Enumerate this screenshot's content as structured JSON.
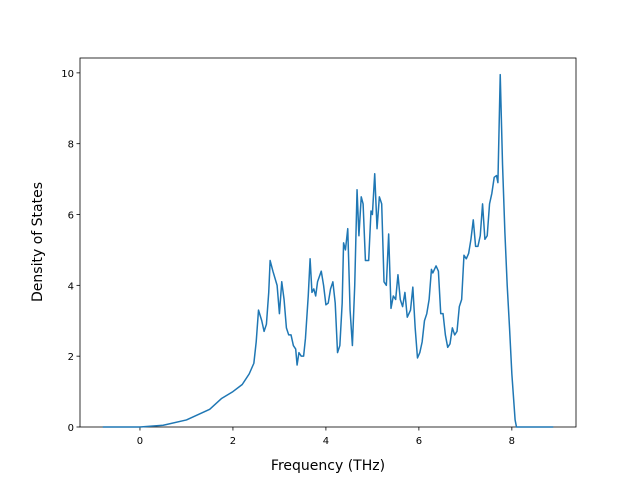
{
  "chart_data": {
    "type": "line",
    "xlabel": "Frequency (THz)",
    "ylabel": "Density of States",
    "xlim": [
      -1.29,
      9.38
    ],
    "ylim": [
      0,
      10.42
    ],
    "xticks": [
      0,
      2,
      4,
      6,
      8
    ],
    "yticks": [
      0,
      2,
      4,
      6,
      8,
      10
    ],
    "series": [
      {
        "color": "#1f77b4",
        "x": [
          -0.8,
          0,
          0.5,
          1.0,
          1.5,
          1.75,
          2.0,
          2.2,
          2.35,
          2.45,
          2.5,
          2.55,
          2.62,
          2.67,
          2.72,
          2.77,
          2.8,
          2.86,
          2.95,
          3.0,
          3.05,
          3.1,
          3.15,
          3.2,
          3.25,
          3.3,
          3.35,
          3.38,
          3.42,
          3.47,
          3.52,
          3.56,
          3.62,
          3.66,
          3.7,
          3.74,
          3.78,
          3.82,
          3.9,
          3.95,
          4.0,
          4.05,
          4.1,
          4.15,
          4.2,
          4.25,
          4.3,
          4.35,
          4.38,
          4.42,
          4.47,
          4.52,
          4.57,
          4.62,
          4.67,
          4.71,
          4.76,
          4.8,
          4.85,
          4.92,
          4.97,
          5.0,
          5.05,
          5.1,
          5.15,
          5.2,
          5.25,
          5.3,
          5.35,
          5.4,
          5.45,
          5.5,
          5.55,
          5.6,
          5.65,
          5.7,
          5.75,
          5.82,
          5.87,
          5.92,
          5.97,
          6.02,
          6.07,
          6.12,
          6.17,
          6.22,
          6.27,
          6.3,
          6.37,
          6.42,
          6.47,
          6.52,
          6.57,
          6.62,
          6.67,
          6.72,
          6.77,
          6.82,
          6.87,
          6.92,
          6.97,
          7.02,
          7.07,
          7.12,
          7.17,
          7.22,
          7.27,
          7.32,
          7.37,
          7.42,
          7.47,
          7.52,
          7.57,
          7.62,
          7.67,
          7.7,
          7.75,
          7.8,
          7.85,
          7.9,
          7.95,
          8.0,
          8.07,
          8.1,
          8.89
        ],
        "values": [
          0,
          0,
          0.05,
          0.2,
          0.5,
          0.8,
          1.0,
          1.2,
          1.5,
          1.8,
          2.4,
          3.3,
          3.0,
          2.7,
          2.9,
          3.8,
          4.7,
          4.4,
          4.0,
          3.2,
          4.1,
          3.6,
          2.8,
          2.6,
          2.6,
          2.3,
          2.2,
          1.75,
          2.1,
          2.0,
          2.0,
          2.5,
          3.7,
          4.75,
          3.8,
          3.9,
          3.7,
          4.1,
          4.4,
          4.0,
          3.45,
          3.5,
          3.9,
          4.1,
          3.5,
          2.1,
          2.3,
          3.5,
          5.2,
          5.0,
          5.6,
          3.3,
          2.3,
          4.0,
          6.7,
          5.4,
          6.5,
          6.3,
          4.7,
          4.7,
          6.1,
          6.0,
          7.15,
          5.6,
          6.5,
          6.3,
          4.1,
          4.0,
          5.45,
          3.35,
          3.7,
          3.6,
          4.3,
          3.6,
          3.4,
          3.8,
          3.1,
          3.3,
          3.95,
          2.8,
          1.95,
          2.1,
          2.4,
          3.0,
          3.2,
          3.6,
          4.45,
          4.35,
          4.55,
          4.4,
          3.2,
          3.2,
          2.6,
          2.25,
          2.35,
          2.8,
          2.6,
          2.7,
          3.4,
          3.6,
          4.85,
          4.75,
          4.9,
          5.3,
          5.85,
          5.1,
          5.1,
          5.4,
          6.3,
          5.3,
          5.4,
          6.3,
          6.6,
          7.05,
          7.1,
          6.9,
          9.95,
          7.4,
          5.5,
          4.0,
          2.8,
          1.5,
          0.2,
          0,
          0
        ]
      }
    ]
  }
}
